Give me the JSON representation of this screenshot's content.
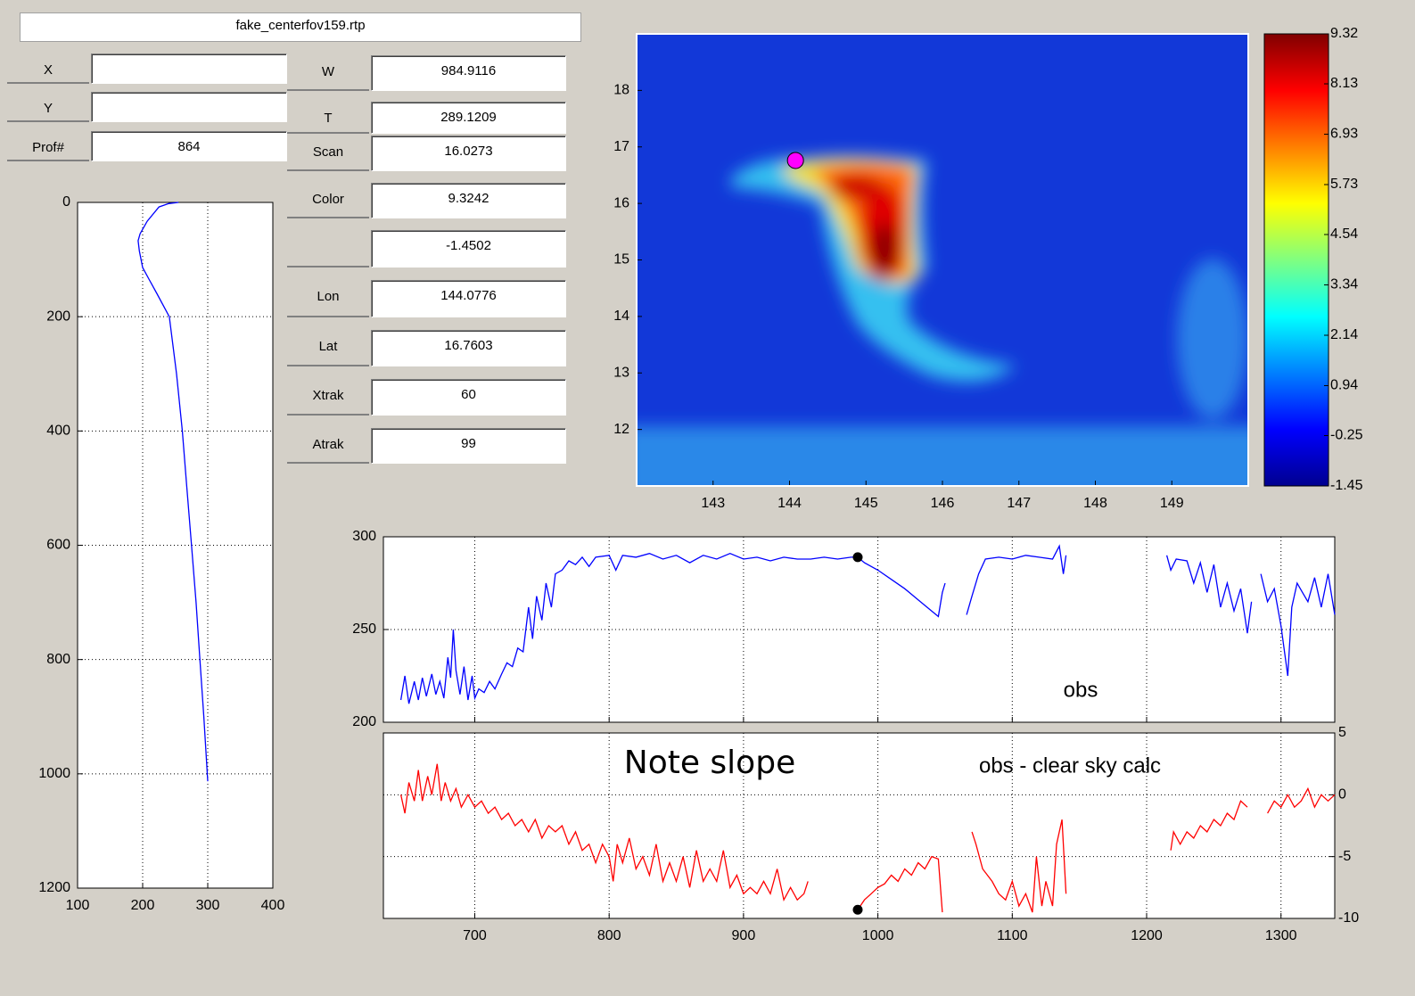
{
  "panel": {
    "file": "fake_centerfov159.rtp",
    "fields": [
      {
        "label": "X"
      },
      {
        "label": "Y"
      },
      {
        "label": "Prof#",
        "value": 864
      },
      {
        "label": "W",
        "value": 984.9116
      },
      {
        "label": "T",
        "value": 289.1209
      },
      {
        "label": "Scan",
        "value": 16.0273
      },
      {
        "label": "Color",
        "value": 9.3242
      },
      {
        "value": -1.4502
      },
      {
        "label": "Lon",
        "value": 144.0776
      },
      {
        "label": "Lat",
        "value": 16.7603
      },
      {
        "label": "Xtrak",
        "value": 60
      },
      {
        "label": "Atrak",
        "value": 99
      }
    ]
  },
  "chart_data": [
    {
      "type": "line",
      "xlim": [
        100,
        400
      ],
      "ylim": [
        0,
        1200
      ],
      "yreversed": true,
      "xticks": [
        100,
        200,
        300,
        400
      ],
      "yticks": [
        0,
        200,
        400,
        600,
        800,
        1000,
        1200
      ],
      "grid": true,
      "x": [
        255,
        240,
        225,
        207,
        196,
        193,
        195,
        200,
        210,
        222,
        241,
        252,
        261,
        268,
        275,
        282,
        288,
        294,
        300
      ],
      "series": [
        {
          "color": "#0000ff",
          "values": [
            0,
            2,
            8,
            33,
            55,
            67,
            85,
            114,
            135,
            160,
            200,
            300,
            400,
            500,
            600,
            700,
            800,
            900,
            1013
          ]
        }
      ]
    },
    {
      "type": "map",
      "xlim": [
        142,
        150
      ],
      "ylim": [
        11,
        19
      ],
      "xticks": [
        143,
        144,
        145,
        146,
        147,
        148,
        149
      ],
      "yticks": [
        12,
        13,
        14,
        15,
        16,
        17,
        18
      ],
      "marker": {
        "x": 144.0776,
        "y": 16.7603,
        "color": "#ff00ff"
      },
      "colorbar": {
        "colormap": "jet",
        "clim": [
          -1.45,
          9.32
        ],
        "ticks": [
          9.32,
          8.13,
          6.93,
          5.73,
          4.54,
          3.34,
          2.14,
          0.94,
          -0.25,
          -1.45
        ]
      }
    },
    {
      "type": "line",
      "xlim": [
        632,
        1340
      ],
      "ylim": [
        200,
        300
      ],
      "xticks": [
        700,
        800,
        900,
        1000,
        1100,
        1200,
        1300
      ],
      "yticks": [
        200,
        250,
        300
      ],
      "grid": true,
      "annotations": [
        "obs"
      ],
      "marker": {
        "x": 985,
        "y": 289,
        "color": "#000000"
      },
      "x": [
        645,
        648,
        651,
        655,
        658,
        661,
        664,
        668,
        671,
        674,
        677,
        680,
        682,
        684,
        686,
        689,
        692,
        695,
        698,
        700,
        703,
        707,
        711,
        715,
        720,
        724,
        728,
        732,
        736,
        740,
        743,
        746,
        750,
        753,
        757,
        760,
        765,
        770,
        775,
        780,
        785,
        790,
        800,
        805,
        810,
        820,
        830,
        840,
        850,
        860,
        870,
        880,
        890,
        900,
        910,
        920,
        930,
        940,
        950,
        960,
        970,
        980,
        985,
        990,
        1000,
        1010,
        1020,
        1030,
        1040,
        1045,
        1048,
        1050,
        1058,
        1066,
        1070,
        1075,
        1080,
        1090,
        1100,
        1110,
        1120,
        1130,
        1135,
        1138,
        1140,
        1180,
        1215,
        1218,
        1222,
        1230,
        1235,
        1240,
        1245,
        1250,
        1255,
        1260,
        1265,
        1270,
        1275,
        1278,
        1282,
        1285,
        1290,
        1295,
        1300,
        1305,
        1308,
        1312,
        1316,
        1320,
        1325,
        1330,
        1335,
        1340
      ],
      "series": [
        {
          "color": "#0000ff",
          "values": [
            212,
            225,
            210,
            222,
            212,
            224,
            214,
            226,
            215,
            222,
            213,
            235,
            224,
            250,
            228,
            215,
            230,
            212,
            225,
            213,
            218,
            216,
            222,
            218,
            226,
            232,
            230,
            240,
            238,
            262,
            245,
            268,
            255,
            275,
            262,
            280,
            282,
            287,
            285,
            289,
            284,
            289,
            290,
            282,
            290,
            289,
            291,
            288,
            290,
            286,
            290,
            288,
            291,
            288,
            289,
            287,
            289,
            288,
            288,
            289,
            288,
            289,
            289,
            286,
            282,
            277,
            272,
            266,
            260,
            257,
            270,
            275,
            null,
            258,
            268,
            280,
            288,
            289,
            288,
            290,
            289,
            288,
            295,
            280,
            290,
            null,
            290,
            282,
            288,
            287,
            275,
            286,
            270,
            285,
            262,
            275,
            260,
            272,
            248,
            265,
            null,
            280,
            265,
            272,
            252,
            225,
            262,
            275,
            270,
            265,
            278,
            262,
            280,
            258
          ]
        }
      ]
    },
    {
      "type": "line",
      "xlim": [
        632,
        1340
      ],
      "y2lim": [
        -10,
        5
      ],
      "xticks": [
        700,
        800,
        900,
        1000,
        1100,
        1200,
        1300
      ],
      "y2ticks": [
        -10,
        -5,
        0,
        5
      ],
      "grid": true,
      "annotations": [
        "obs - clear sky calc",
        "Note slope"
      ],
      "marker": {
        "x": 985,
        "y": -9.3,
        "color": "#000000",
        "axis": "y2"
      },
      "x": [
        645,
        648,
        651,
        655,
        658,
        661,
        665,
        668,
        672,
        675,
        678,
        682,
        686,
        690,
        695,
        700,
        705,
        710,
        715,
        720,
        725,
        730,
        735,
        740,
        745,
        750,
        755,
        760,
        765,
        770,
        775,
        780,
        785,
        790,
        795,
        800,
        803,
        806,
        810,
        815,
        820,
        825,
        830,
        835,
        840,
        845,
        850,
        855,
        860,
        865,
        870,
        875,
        880,
        885,
        890,
        895,
        900,
        905,
        910,
        915,
        920,
        925,
        930,
        935,
        940,
        945,
        948,
        965,
        982,
        985,
        990,
        995,
        1000,
        1005,
        1010,
        1015,
        1020,
        1025,
        1030,
        1035,
        1040,
        1045,
        1048,
        1060,
        1070,
        1073,
        1078,
        1085,
        1090,
        1095,
        1100,
        1105,
        1110,
        1115,
        1118,
        1122,
        1125,
        1130,
        1133,
        1137,
        1140,
        1180,
        1218,
        1220,
        1225,
        1230,
        1235,
        1240,
        1245,
        1250,
        1255,
        1260,
        1265,
        1270,
        1275,
        1282,
        1290,
        1295,
        1300,
        1305,
        1310,
        1315,
        1320,
        1325,
        1330,
        1335,
        1340
      ],
      "series": [
        {
          "color": "#ff0000",
          "axis": "y2",
          "values": [
            0,
            -1.5,
            1,
            -0.5,
            2,
            -0.5,
            1.5,
            0,
            2.5,
            -0.5,
            1,
            -0.5,
            0.5,
            -1,
            0,
            -1,
            -0.5,
            -1.5,
            -1,
            -2,
            -1.5,
            -2.5,
            -2,
            -3,
            -2,
            -3.5,
            -2.5,
            -3,
            -2.5,
            -4,
            -3,
            -4.5,
            -4,
            -5.5,
            -4,
            -5,
            -7,
            -4,
            -5.5,
            -3.5,
            -6,
            -5,
            -6.5,
            -4,
            -7,
            -5.5,
            -7,
            -5,
            -7.5,
            -4.5,
            -7,
            -6,
            -7,
            -4.5,
            -7.5,
            -6.5,
            -8,
            -7.5,
            -8,
            -7,
            -8,
            -6,
            -8.5,
            -7.5,
            -8.5,
            -8,
            -7,
            null,
            -9.5,
            -9.3,
            -8.5,
            -8,
            -7.5,
            -7.2,
            -6.5,
            -7,
            -6,
            -6.5,
            -5.5,
            -6,
            -5,
            -5.2,
            -9.5,
            null,
            -3,
            -4,
            -6,
            -7,
            -8,
            -8.5,
            -7,
            -9,
            -8,
            -9.5,
            -5,
            -9,
            -7,
            -9,
            -4,
            -2,
            -8,
            null,
            -4.5,
            -3,
            -4,
            -3,
            -3.5,
            -2.5,
            -3,
            -2,
            -2.5,
            -1.5,
            -2,
            -0.5,
            -1,
            null,
            -1.5,
            -0.5,
            -1,
            0,
            -1,
            -0.5,
            0.5,
            -1,
            0,
            -0.5,
            0
          ]
        }
      ]
    }
  ]
}
